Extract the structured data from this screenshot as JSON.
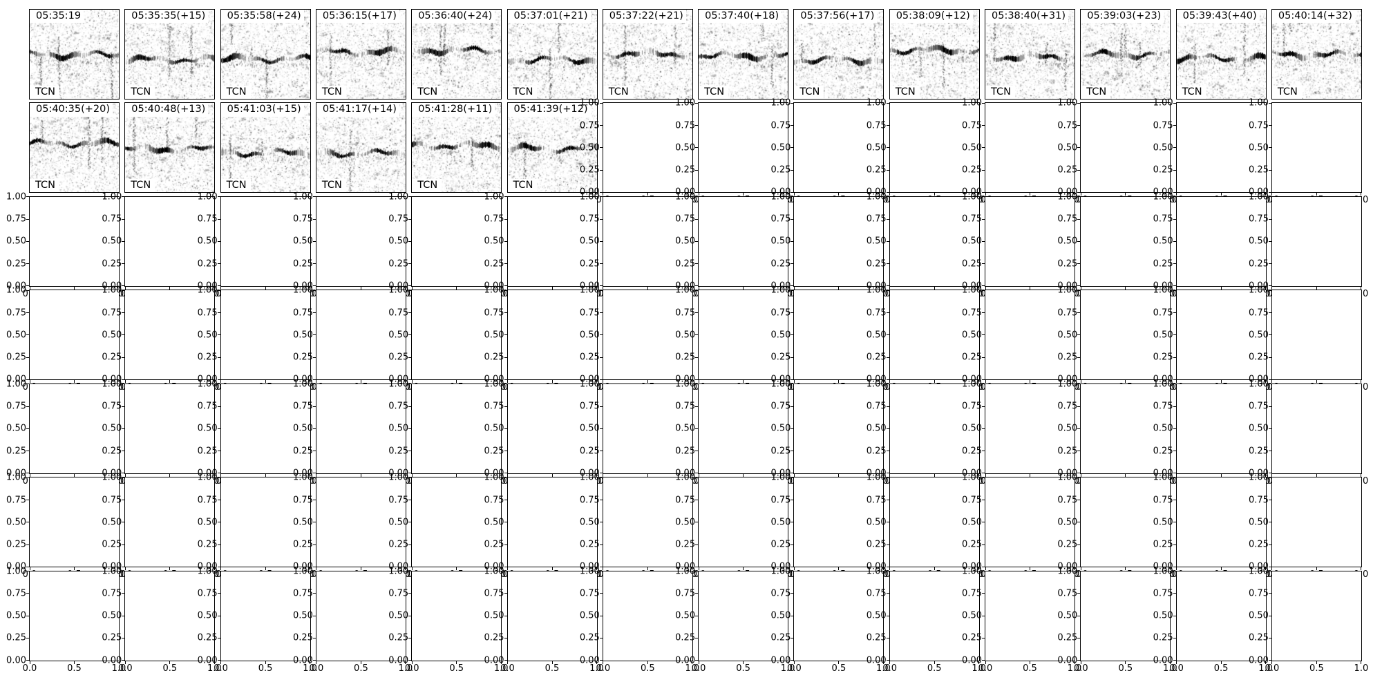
{
  "figure": {
    "background": "#ffffff",
    "text_color": "#000000",
    "rows": 7,
    "cols": 14
  },
  "axis": {
    "ytick_display": [
      "1.00",
      "0.75",
      "0.50",
      "0.25",
      "0.00"
    ],
    "xtick_display": [
      "0.0",
      "0.5",
      "1.0"
    ]
  },
  "chart_data": {
    "type": "heatmap",
    "title": "",
    "grid": {
      "rows": 7,
      "cols": 14
    },
    "spectrogram_panels": [
      {
        "row": 0,
        "col": 0,
        "label": "05:35:19",
        "model": "TCN"
      },
      {
        "row": 0,
        "col": 1,
        "label": "05:35:35(+15)",
        "model": "TCN"
      },
      {
        "row": 0,
        "col": 2,
        "label": "05:35:58(+24)",
        "model": "TCN"
      },
      {
        "row": 0,
        "col": 3,
        "label": "05:36:15(+17)",
        "model": "TCN"
      },
      {
        "row": 0,
        "col": 4,
        "label": "05:36:40(+24)",
        "model": "TCN"
      },
      {
        "row": 0,
        "col": 5,
        "label": "05:37:01(+21)",
        "model": "TCN"
      },
      {
        "row": 0,
        "col": 6,
        "label": "05:37:22(+21)",
        "model": "TCN"
      },
      {
        "row": 0,
        "col": 7,
        "label": "05:37:40(+18)",
        "model": "TCN"
      },
      {
        "row": 0,
        "col": 8,
        "label": "05:37:56(+17)",
        "model": "TCN"
      },
      {
        "row": 0,
        "col": 9,
        "label": "05:38:09(+12)",
        "model": "TCN"
      },
      {
        "row": 0,
        "col": 10,
        "label": "05:38:40(+31)",
        "model": "TCN"
      },
      {
        "row": 0,
        "col": 11,
        "label": "05:39:03(+23)",
        "model": "TCN"
      },
      {
        "row": 0,
        "col": 12,
        "label": "05:39:43(+40)",
        "model": "TCN"
      },
      {
        "row": 0,
        "col": 13,
        "label": "05:40:14(+32)",
        "model": "TCN"
      },
      {
        "row": 1,
        "col": 0,
        "label": "05:40:35(+20)",
        "model": "TCN"
      },
      {
        "row": 1,
        "col": 1,
        "label": "05:40:48(+13)",
        "model": "TCN"
      },
      {
        "row": 1,
        "col": 2,
        "label": "05:41:03(+15)",
        "model": "TCN"
      },
      {
        "row": 1,
        "col": 3,
        "label": "05:41:17(+14)",
        "model": "TCN"
      },
      {
        "row": 1,
        "col": 4,
        "label": "05:41:28(+11)",
        "model": "TCN"
      },
      {
        "row": 1,
        "col": 5,
        "label": "05:41:39(+12)",
        "model": "TCN"
      }
    ],
    "empty_axes": {
      "count": 78,
      "xlim": [
        0.0,
        1.0
      ],
      "ylim": [
        0.0,
        1.0
      ],
      "xticks": [
        0.0,
        0.5,
        1.0
      ],
      "yticks": [
        0.0,
        0.25,
        0.5,
        0.75,
        1.0
      ],
      "grid_lines": false
    }
  }
}
